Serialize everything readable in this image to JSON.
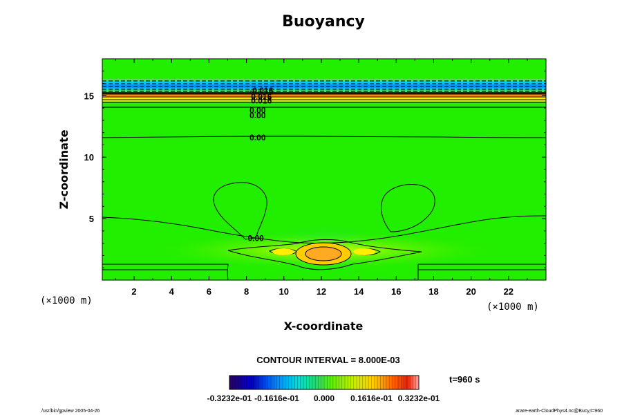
{
  "chart_data": {
    "type": "heatmap",
    "title": "Buoyancy",
    "xlabel": "X-coordinate",
    "ylabel": "Z-coordinate",
    "x_unit": "(×1000 m)",
    "y_unit": "(×1000 m)",
    "xlim": [
      0.3,
      24.0
    ],
    "ylim": [
      0.0,
      18.0
    ],
    "x_ticks": [
      "2",
      "4",
      "6",
      "8",
      "10",
      "12",
      "14",
      "16",
      "18",
      "20",
      "22"
    ],
    "y_ticks": [
      "5",
      "10",
      "15"
    ],
    "contour_interval": "CONTOUR INTERVAL = 8.000E-03",
    "time_label": "t=960 s",
    "colorbar": {
      "min": -0.03232,
      "max": 0.03232,
      "labels": [
        "-0.3232e-01",
        "-0.1616e-01",
        "0.000",
        "0.1616e-01",
        "0.3232e-01"
      ]
    },
    "contour_labels": [
      {
        "text": "-0.016",
        "x": 8.8,
        "z": 15.4
      },
      {
        "text": "0.016",
        "x": 8.8,
        "z": 14.9
      },
      {
        "text": "0.016",
        "x": 8.8,
        "z": 14.6
      },
      {
        "text": "0.00",
        "x": 8.6,
        "z": 13.8
      },
      {
        "text": "0.00",
        "x": 8.6,
        "z": 13.4
      },
      {
        "text": "0.00",
        "x": 8.6,
        "z": 11.6
      },
      {
        "text": "0.00",
        "x": 8.5,
        "z": 3.4
      }
    ],
    "grid": false
  },
  "footer": {
    "left": "/usr/bin/gpview 2005-04-26",
    "right": "arare-earth-CloudPhys4.nc@Bucy,t=960"
  }
}
